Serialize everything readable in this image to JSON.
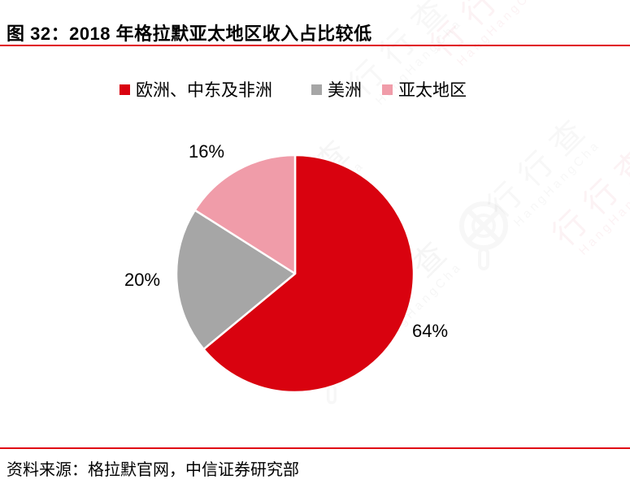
{
  "title": "图 32：2018 年格拉默亚太地区收入占比较低",
  "source": "资料来源：格拉默官网，中信证券研究部",
  "colors": {
    "accent_red": "#D9020F",
    "gray": "#A6A6A6",
    "pink": "#F09CA9",
    "rule_red": "#E00013"
  },
  "legend": [
    {
      "label": "欧洲、中东及非洲",
      "color": "#D9020F"
    },
    {
      "label": "美洲",
      "color": "#A6A6A6"
    },
    {
      "label": "亚太地区",
      "color": "#F09CA9"
    }
  ],
  "chart_data": {
    "type": "pie",
    "title": "图 32：2018 年格拉默亚太地区收入占比较低",
    "categories": [
      "欧洲、中东及非洲",
      "美洲",
      "亚太地区"
    ],
    "values": [
      64,
      20,
      16
    ],
    "unit": "%",
    "labels": [
      "64%",
      "20%",
      "16%"
    ],
    "colors": [
      "#D9020F",
      "#A6A6A6",
      "#F09CA9"
    ],
    "start_angle_deg": 0,
    "direction": "clockwise",
    "legend_position": "top",
    "slice_border_color": "#ffffff"
  },
  "watermark": {
    "text": "行行查",
    "subtext": "HangHangCha"
  }
}
